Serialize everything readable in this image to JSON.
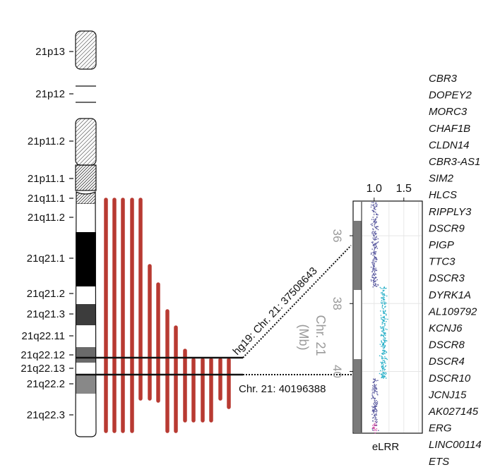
{
  "ideogram": {
    "bands": [
      "21p13",
      "21p12",
      "21p11.2",
      "21p11.1",
      "21q11.1",
      "21q11.2",
      "21q21.1",
      "21q21.2",
      "21q21.3",
      "21q22.11",
      "21q22.12",
      "21q22.13",
      "21q22.2",
      "21q22.3"
    ]
  },
  "annotations": {
    "upper_coord": "hg19: Chr. 21: 37508643",
    "lower_coord": "Chr. 21: 40196388",
    "axis_title": "Chr. 21 (Mb)",
    "panel_xlabel": "eLRR"
  },
  "genes": [
    "CBR3",
    "DOPEY2",
    "MORC3",
    "CHAF1B",
    "CLDN14",
    "CBR3-AS1",
    "SIM2",
    "HLCS",
    "RIPPLY3",
    "DSCR9",
    "PIGP",
    "TTC3",
    "DSCR3",
    "DYRK1A",
    "AL109792",
    "KCNJ6",
    "DSCR8",
    "DSCR4",
    "DSCR10",
    "JCNJ15",
    "AK027145",
    "ERG",
    "LINC00114",
    "ETS"
  ],
  "chart_data": {
    "type": "scatter",
    "xlabel": "eLRR",
    "x_ticks": [
      "1.0",
      "1.5"
    ],
    "xlim": [
      0.8,
      1.8
    ],
    "y_ticks": [
      "36",
      "38",
      "40"
    ],
    "ylabel": "Chr. 21 (Mb)",
    "ylim": [
      35.0,
      41.8
    ],
    "segments": [
      {
        "y_start": 35.0,
        "y_end": 37.5,
        "eLRR": 1.0,
        "color": "#5a5aa0"
      },
      {
        "y_start": 37.5,
        "y_end": 40.2,
        "eLRR": 1.15,
        "color": "#2ab0c8"
      },
      {
        "y_start": 40.2,
        "y_end": 41.8,
        "eLRR": 1.0,
        "color": "#5a5aa0"
      }
    ],
    "colors": {
      "normal": "#5a5aa0",
      "gain": "#2ab0c8",
      "tail": "#d040a0",
      "bar": "#b83a32"
    }
  }
}
